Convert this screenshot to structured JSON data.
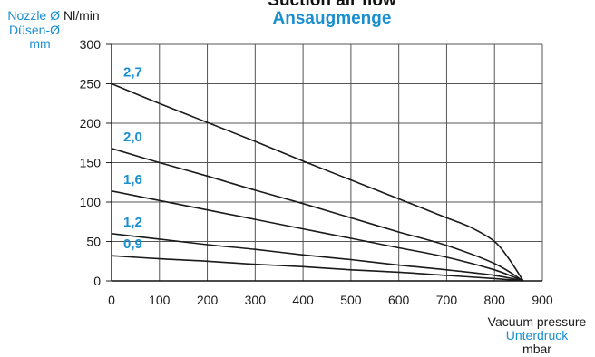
{
  "chart_data": {
    "type": "line",
    "title": "Suction air flow",
    "subtitle": "Ansaugmenge",
    "ylabel": "Nl/min",
    "legend_title": [
      "Nozzle Ø",
      "Düsen-Ø",
      "mm"
    ],
    "xlabel": [
      "Vacuum pressure",
      "Unterdruck",
      "mbar"
    ],
    "xlim": [
      0,
      900
    ],
    "ylim": [
      0,
      300
    ],
    "xticks": [
      0,
      100,
      200,
      300,
      400,
      500,
      600,
      700,
      800,
      900
    ],
    "yticks": [
      0,
      50,
      100,
      150,
      200,
      250,
      300
    ],
    "grid": true,
    "series": [
      {
        "name": "2,7",
        "x": [
          0,
          100,
          200,
          300,
          400,
          500,
          600,
          700,
          750,
          800,
          830,
          860
        ],
        "y": [
          250,
          225,
          201,
          177,
          152,
          128,
          104,
          80,
          68,
          50,
          28,
          0
        ]
      },
      {
        "name": "2,0",
        "x": [
          0,
          100,
          200,
          300,
          400,
          500,
          600,
          700,
          800,
          860
        ],
        "y": [
          168,
          150,
          133,
          115,
          98,
          80,
          62,
          45,
          22,
          0
        ]
      },
      {
        "name": "1,6",
        "x": [
          0,
          100,
          200,
          300,
          400,
          500,
          600,
          700,
          800,
          860
        ],
        "y": [
          114,
          102,
          90,
          78,
          66,
          54,
          42,
          30,
          14,
          0
        ]
      },
      {
        "name": "1,2",
        "x": [
          0,
          100,
          200,
          300,
          400,
          500,
          600,
          700,
          800,
          860
        ],
        "y": [
          60,
          53,
          46,
          40,
          33,
          27,
          20,
          14,
          7,
          0
        ]
      },
      {
        "name": "0,9",
        "x": [
          0,
          100,
          200,
          300,
          400,
          500,
          600,
          700,
          800,
          860
        ],
        "y": [
          32,
          28,
          25,
          21,
          18,
          14,
          11,
          7,
          3,
          0
        ]
      }
    ]
  }
}
